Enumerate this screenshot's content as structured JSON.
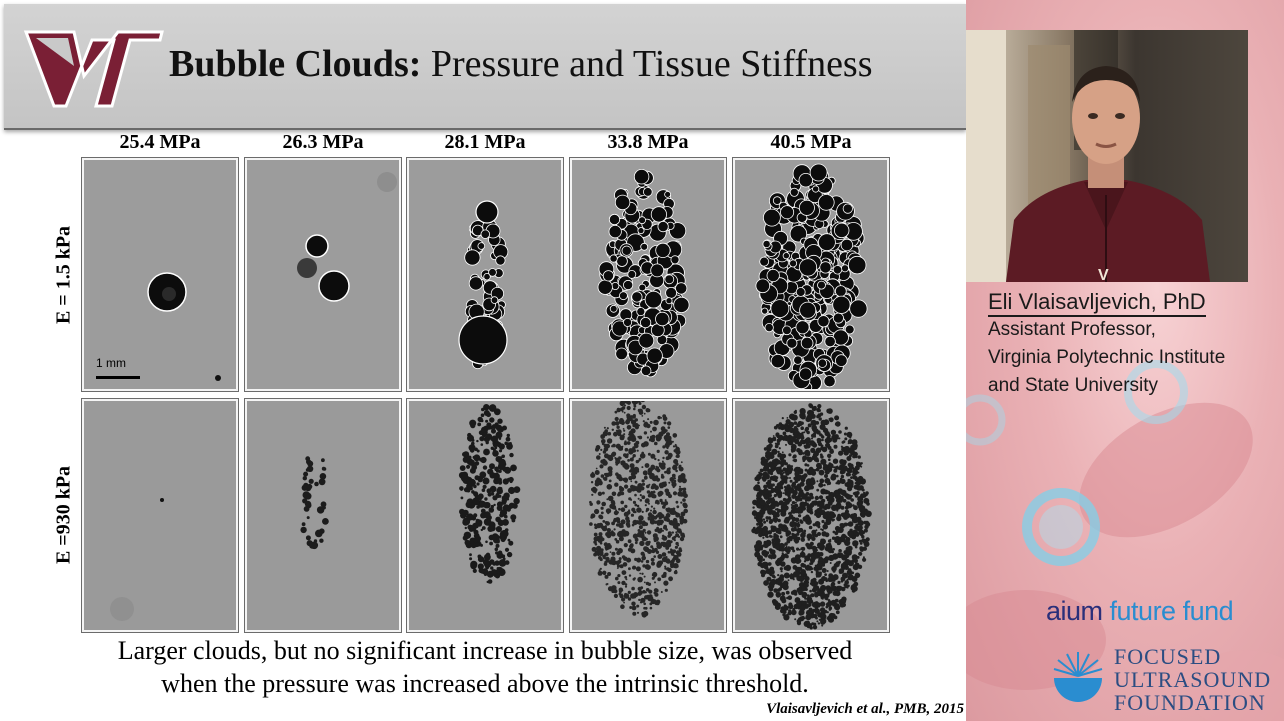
{
  "slide": {
    "title_bold": "Bubble Clouds:",
    "title_rest": " Pressure and Tissue Stiffness",
    "logo": "VT",
    "columns": [
      "25.4 MPa",
      "26.3 MPa",
      "28.1 MPa",
      "33.8 MPa",
      "40.5 MPa"
    ],
    "rows": [
      "E = 1.5 kPa",
      "E =930 kPa"
    ],
    "scale_bar": "1 mm",
    "caption_line1": "Larger clouds, but no significant increase in bubble size, was observed",
    "caption_line2": "when the pressure was increased above the intrinsic threshold.",
    "citation": "Vlaisavljevich et al., PMB, 2015"
  },
  "speaker": {
    "name": "Eli Vlaisavljevich, PhD",
    "title": "Assistant Professor,",
    "org_line1": "Virginia Polytechnic Institute",
    "org_line2": "and State University"
  },
  "sponsors": {
    "aium_part1": "aium",
    "aium_part2": " future fund",
    "fus_line1": "FOCUSED",
    "fus_line2": "ULTRASOUND",
    "fus_line3": "FOUNDATION"
  },
  "colors": {
    "vt_maroon": "#7a1f35",
    "aium_navy": "#2a2f7a",
    "aium_blue": "#2a8dd0",
    "fus_blue": "#2b4d82"
  }
}
